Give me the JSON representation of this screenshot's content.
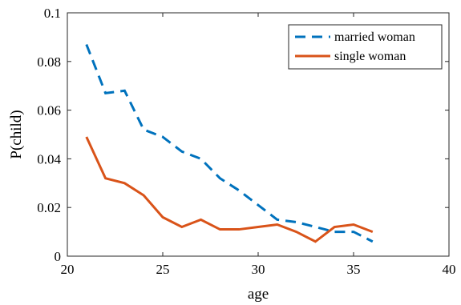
{
  "chart_data": {
    "type": "line",
    "xlabel": "age",
    "ylabel": "P(child)",
    "xlim": [
      20,
      40
    ],
    "ylim": [
      0,
      0.1
    ],
    "xticks": [
      "20",
      "25",
      "30",
      "35",
      "40"
    ],
    "yticks": [
      "0",
      "0.02",
      "0.04",
      "0.06",
      "0.08",
      "0.1"
    ],
    "grid": false,
    "legend_position": "top-right",
    "x": [
      21,
      22,
      23,
      24,
      25,
      26,
      27,
      28,
      29,
      30,
      31,
      32,
      33,
      34,
      35,
      36
    ],
    "series": [
      {
        "name": "married woman",
        "style": "dashed",
        "color": "#0072BD",
        "values": [
          0.087,
          0.067,
          0.068,
          0.052,
          0.049,
          0.043,
          0.04,
          0.032,
          0.027,
          0.021,
          0.015,
          0.014,
          0.012,
          0.01,
          0.01,
          0.006
        ]
      },
      {
        "name": "single woman",
        "style": "solid",
        "color": "#D95319",
        "values": [
          0.049,
          0.032,
          0.03,
          0.025,
          0.016,
          0.012,
          0.015,
          0.011,
          0.011,
          0.012,
          0.013,
          0.01,
          0.006,
          0.012,
          0.013,
          0.01
        ]
      }
    ]
  }
}
